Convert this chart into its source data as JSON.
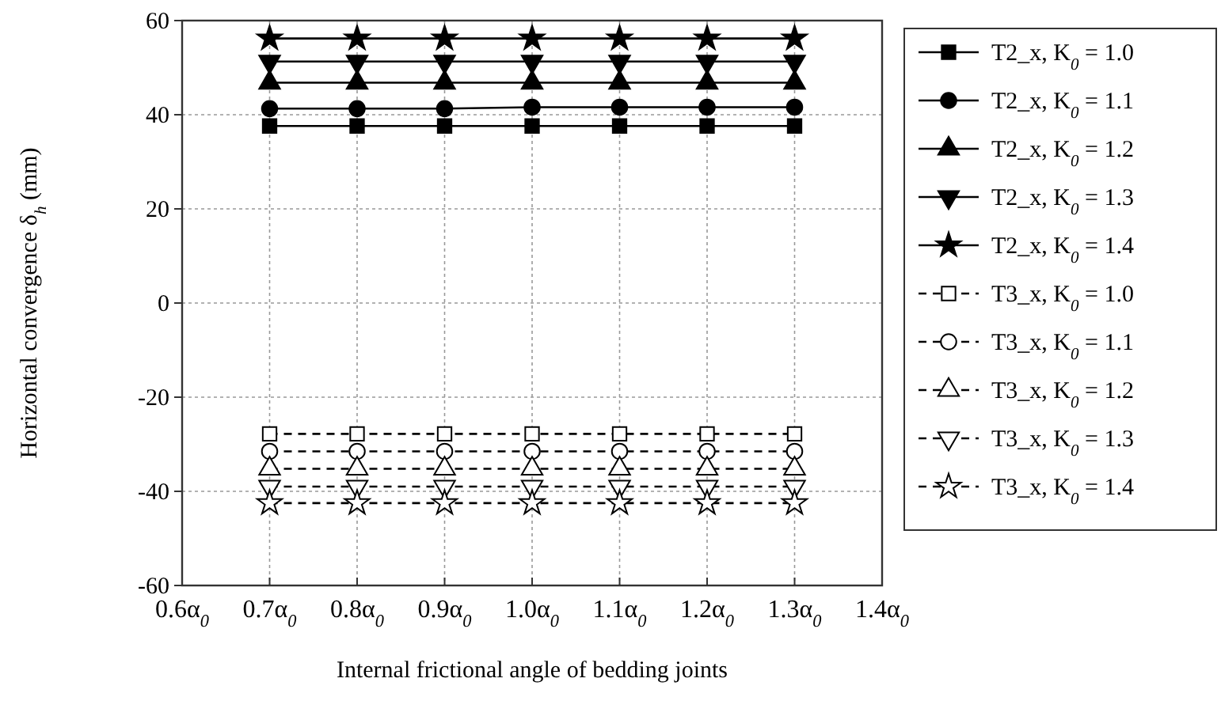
{
  "chart_data": {
    "type": "line",
    "xlabel": "Internal frictional angle of bedding joints",
    "ylabel": "Horizontal convergence δ$_{h}$ (mm)",
    "categories": [
      "0.6α$_{0}$",
      "0.7α$_{0}$",
      "0.8α$_{0}$",
      "0.9α$_{0}$",
      "1.0α$_{0}$",
      "1.1α$_{0}$",
      "1.2α$_{0}$",
      "1.3α$_{0}$",
      "1.4α$_{0}$"
    ],
    "ylim": [
      -60,
      60
    ],
    "yticks": [
      -60,
      -40,
      -20,
      0,
      20,
      40,
      60
    ],
    "grid": true,
    "legend": "right",
    "series": [
      {
        "name": "T2_x, K$_{0}$ = 1.0",
        "color": "#000000",
        "marker": "square",
        "line_style": "solid",
        "values": [
          null,
          37.6,
          37.6,
          37.6,
          37.6,
          37.6,
          37.6,
          37.6,
          null
        ]
      },
      {
        "name": "T2_x, K$_{0}$ = 1.1",
        "color": "#000000",
        "marker": "circle",
        "line_style": "solid",
        "values": [
          null,
          41.3,
          41.3,
          41.3,
          41.6,
          41.6,
          41.6,
          41.6,
          null
        ]
      },
      {
        "name": "T2_x, K$_{0}$ = 1.2",
        "color": "#000000",
        "marker": "triangle",
        "line_style": "solid",
        "values": [
          null,
          46.8,
          46.8,
          46.8,
          46.8,
          46.8,
          46.8,
          46.8,
          null
        ]
      },
      {
        "name": "T2_x, K$_{0}$ = 1.3",
        "color": "#000000",
        "marker": "triangle-down",
        "line_style": "solid",
        "values": [
          null,
          51.3,
          51.3,
          51.3,
          51.3,
          51.3,
          51.3,
          51.3,
          null
        ]
      },
      {
        "name": "T2_x, K$_{0}$ = 1.4",
        "color": "#000000",
        "marker": "star",
        "line_style": "solid",
        "values": [
          null,
          56.2,
          56.2,
          56.2,
          56.2,
          56.2,
          56.2,
          56.2,
          null
        ]
      },
      {
        "name": "T3_x, K$_{0}$ = 1.0",
        "color": "#000000",
        "marker": "square",
        "line_style": "dashed",
        "values": [
          null,
          -27.8,
          -27.8,
          -27.8,
          -27.8,
          -27.8,
          -27.8,
          -27.8,
          null
        ]
      },
      {
        "name": "T3_x, K$_{0}$ = 1.1",
        "color": "#000000",
        "marker": "circle",
        "line_style": "dashed",
        "values": [
          null,
          -31.5,
          -31.5,
          -31.5,
          -31.5,
          -31.5,
          -31.5,
          -31.5,
          null
        ]
      },
      {
        "name": "T3_x, K$_{0}$ = 1.2",
        "color": "#000000",
        "marker": "triangle",
        "line_style": "dashed",
        "values": [
          null,
          -35.2,
          -35.2,
          -35.2,
          -35.2,
          -35.2,
          -35.2,
          -35.2,
          null
        ]
      },
      {
        "name": "T3_x, K$_{0}$ = 1.3",
        "color": "#000000",
        "marker": "triangle-down",
        "line_style": "dashed",
        "values": [
          null,
          -39,
          -39,
          -39,
          -39,
          -39,
          -39,
          -39,
          null
        ]
      },
      {
        "name": "T3_x, K$_{0}$ = 1.4",
        "color": "#000000",
        "marker": "star",
        "line_style": "dashed",
        "values": [
          null,
          -42.5,
          -42.5,
          -42.5,
          -42.5,
          -42.5,
          -42.5,
          -42.5,
          null
        ]
      }
    ]
  }
}
